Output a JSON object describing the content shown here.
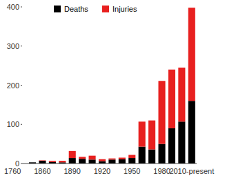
{
  "chart_data": {
    "type": "bar",
    "stacked": true,
    "grid": false,
    "legend": "top",
    "categories": [
      "1760",
      null,
      null,
      "1860",
      null,
      null,
      "1890",
      null,
      null,
      "1920",
      null,
      null,
      "1950",
      null,
      null,
      "1980",
      null,
      null,
      "2010-present"
    ],
    "series": [
      {
        "name": "Deaths",
        "color": "#000000",
        "values": [
          0,
          0,
          3,
          7,
          4,
          3,
          14,
          12,
          10,
          6,
          10,
          11,
          14,
          43,
          36,
          50,
          90,
          107,
          160
        ]
      },
      {
        "name": "Injuries",
        "color": "#e8201f",
        "values": [
          0,
          0,
          0,
          1,
          3,
          4,
          18,
          5,
          10,
          5,
          3,
          4,
          8,
          64,
          74,
          161,
          150,
          138,
          238
        ]
      }
    ],
    "ylim": [
      0,
      400
    ],
    "yticks": [
      0,
      100,
      200,
      300,
      400
    ]
  }
}
